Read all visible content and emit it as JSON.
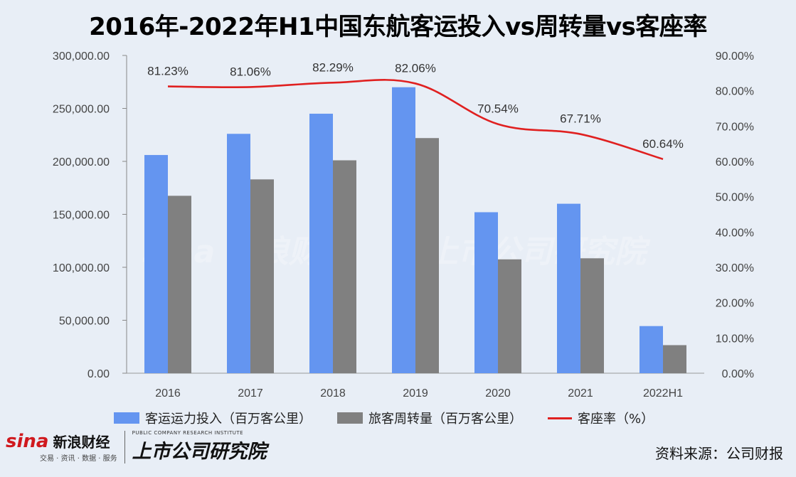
{
  "title": "2016年-2022年H1中国东航客运投入vs周转量vs客座率",
  "chart_data": {
    "type": "bar",
    "categories": [
      "2016",
      "2017",
      "2018",
      "2019",
      "2020",
      "2021",
      "2022H1"
    ],
    "series": [
      {
        "name": "客运运力投入（百万客公里）",
        "type": "bar",
        "axis": "left",
        "color": "#6495f0",
        "values": [
          206000,
          226000,
          245000,
          270000,
          152000,
          160000,
          44500
        ]
      },
      {
        "name": "旅客周转量（百万客公里）",
        "type": "bar",
        "axis": "left",
        "color": "#808080",
        "values": [
          167500,
          183000,
          201000,
          222000,
          107500,
          108500,
          26500
        ]
      },
      {
        "name": "客座率（%）",
        "type": "line",
        "axis": "right",
        "color": "#e02020",
        "values": [
          81.23,
          81.06,
          82.29,
          82.06,
          70.54,
          67.71,
          60.64
        ],
        "labels": [
          "81.23%",
          "81.06%",
          "82.29%",
          "82.06%",
          "70.54%",
          "67.71%",
          "60.64%"
        ]
      }
    ],
    "y_left": {
      "lim": [
        0,
        300000
      ],
      "ticks": [
        "0.00",
        "50,000.00",
        "100,000.00",
        "150,000.00",
        "200,000.00",
        "250,000.00",
        "300,000.00"
      ]
    },
    "y_right": {
      "lim": [
        0,
        90
      ],
      "ticks": [
        "0.00%",
        "10.00%",
        "20.00%",
        "30.00%",
        "40.00%",
        "50.00%",
        "60.00%",
        "70.00%",
        "80.00%",
        "90.00%"
      ]
    },
    "legend_position": "bottom"
  },
  "footer": {
    "brand_en": "sina",
    "brand_cn": "新浪财经",
    "brand_sub": "交易 · 资讯 · 数据 · 服务",
    "institute_en": "PUBLIC COMPANY RESEARCH INSTITUTE",
    "institute_cn": "上市公司研究院",
    "source": "资料来源：公司财报"
  }
}
